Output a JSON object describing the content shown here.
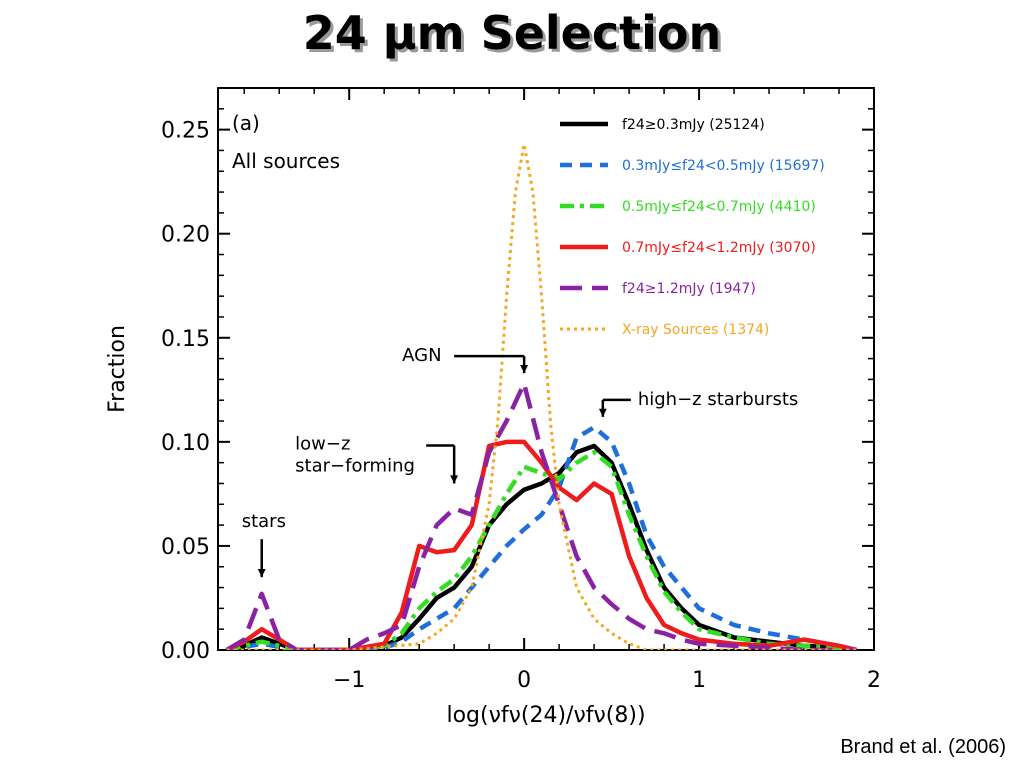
{
  "slide": {
    "title": "24 μm Selection",
    "citation": "Brand et al. (2006)"
  },
  "chart_data": {
    "type": "line",
    "title": "",
    "xlabel": "log(νfν(24)/νfν(8))",
    "ylabel": "Fraction",
    "panel_label": "(a)",
    "panel_subtitle": "All sources",
    "xlim": [
      -1.75,
      2.0
    ],
    "ylim": [
      0.0,
      0.27
    ],
    "xticks": [
      -1,
      0,
      1,
      2
    ],
    "xtick_labels": [
      "−1",
      "0",
      "1",
      "2"
    ],
    "yticks": [
      0.0,
      0.05,
      0.1,
      0.15,
      0.2,
      0.25
    ],
    "ytick_labels": [
      "0.00",
      "0.05",
      "0.10",
      "0.15",
      "0.20",
      "0.25"
    ],
    "grid": false,
    "legend_position": "top-right",
    "series": [
      {
        "name": "f24≥0.3mJy (25124)",
        "color": "#000000",
        "dash": "solid",
        "x": [
          -1.7,
          -1.6,
          -1.5,
          -1.4,
          -1.3,
          -1.2,
          -1.0,
          -0.8,
          -0.7,
          -0.6,
          -0.5,
          -0.4,
          -0.3,
          -0.2,
          -0.1,
          0.0,
          0.1,
          0.2,
          0.3,
          0.4,
          0.5,
          0.6,
          0.7,
          0.8,
          0.9,
          1.0,
          1.2,
          1.4,
          1.6,
          1.8,
          1.9
        ],
        "y": [
          0.0,
          0.002,
          0.006,
          0.003,
          0.0,
          0.0,
          0.0,
          0.002,
          0.006,
          0.015,
          0.025,
          0.03,
          0.04,
          0.06,
          0.07,
          0.077,
          0.08,
          0.085,
          0.095,
          0.098,
          0.09,
          0.07,
          0.048,
          0.03,
          0.02,
          0.012,
          0.006,
          0.004,
          0.002,
          0.001,
          0.0
        ]
      },
      {
        "name": "0.3mJy≤f24<0.5mJy (15697)",
        "color": "#1e6fd9",
        "dash": "dash",
        "x": [
          -1.7,
          -1.5,
          -1.3,
          -1.0,
          -0.8,
          -0.7,
          -0.6,
          -0.5,
          -0.4,
          -0.3,
          -0.2,
          -0.1,
          0.0,
          0.1,
          0.2,
          0.3,
          0.4,
          0.5,
          0.6,
          0.7,
          0.8,
          0.9,
          1.0,
          1.2,
          1.4,
          1.6,
          1.8,
          1.9
        ],
        "y": [
          0.0,
          0.003,
          0.0,
          0.0,
          0.001,
          0.004,
          0.01,
          0.015,
          0.02,
          0.03,
          0.04,
          0.05,
          0.058,
          0.065,
          0.078,
          0.102,
          0.107,
          0.1,
          0.08,
          0.055,
          0.04,
          0.03,
          0.02,
          0.012,
          0.008,
          0.005,
          0.002,
          0.0
        ]
      },
      {
        "name": "0.5mJy≤f24<0.7mJy (4410)",
        "color": "#33dd22",
        "dash": "dashdot",
        "x": [
          -1.7,
          -1.5,
          -1.3,
          -1.0,
          -0.8,
          -0.7,
          -0.6,
          -0.5,
          -0.4,
          -0.3,
          -0.2,
          -0.1,
          0.0,
          0.1,
          0.2,
          0.3,
          0.4,
          0.5,
          0.6,
          0.7,
          0.8,
          0.9,
          1.0,
          1.2,
          1.4,
          1.6,
          1.8,
          1.9
        ],
        "y": [
          0.0,
          0.004,
          0.0,
          0.0,
          0.002,
          0.008,
          0.02,
          0.028,
          0.034,
          0.045,
          0.06,
          0.075,
          0.088,
          0.085,
          0.082,
          0.09,
          0.095,
          0.088,
          0.065,
          0.045,
          0.028,
          0.018,
          0.01,
          0.006,
          0.003,
          0.002,
          0.001,
          0.0
        ]
      },
      {
        "name": "0.7mJy≤f24<1.2mJy (3070)",
        "color": "#ee1c1c",
        "dash": "solid",
        "x": [
          -1.7,
          -1.6,
          -1.5,
          -1.4,
          -1.3,
          -1.0,
          -0.8,
          -0.7,
          -0.6,
          -0.5,
          -0.4,
          -0.3,
          -0.2,
          -0.1,
          0.0,
          0.1,
          0.2,
          0.3,
          0.4,
          0.5,
          0.6,
          0.7,
          0.8,
          0.9,
          1.0,
          1.2,
          1.4,
          1.6,
          1.8,
          1.9
        ],
        "y": [
          0.0,
          0.004,
          0.01,
          0.005,
          0.0,
          0.0,
          0.003,
          0.018,
          0.05,
          0.047,
          0.048,
          0.06,
          0.098,
          0.1,
          0.1,
          0.09,
          0.078,
          0.072,
          0.08,
          0.075,
          0.045,
          0.025,
          0.012,
          0.008,
          0.005,
          0.003,
          0.002,
          0.005,
          0.002,
          0.0
        ]
      },
      {
        "name": "f24≥1.2mJy (1947)",
        "color": "#8b22a3",
        "dash": "longdash",
        "x": [
          -1.7,
          -1.6,
          -1.5,
          -1.4,
          -1.3,
          -1.0,
          -0.9,
          -0.8,
          -0.7,
          -0.6,
          -0.5,
          -0.4,
          -0.3,
          -0.2,
          -0.1,
          0.0,
          0.1,
          0.2,
          0.3,
          0.4,
          0.5,
          0.6,
          0.7,
          0.8,
          0.9,
          1.0,
          1.2,
          1.4,
          1.6,
          1.8,
          1.9
        ],
        "y": [
          0.0,
          0.005,
          0.027,
          0.005,
          0.0,
          0.0,
          0.005,
          0.008,
          0.012,
          0.04,
          0.06,
          0.068,
          0.065,
          0.095,
          0.11,
          0.128,
          0.095,
          0.07,
          0.045,
          0.03,
          0.022,
          0.015,
          0.01,
          0.008,
          0.005,
          0.003,
          0.002,
          0.001,
          0.0,
          0.0,
          0.0
        ]
      },
      {
        "name": "X-ray Sources (1374)",
        "color": "#f5a623",
        "dash": "dot",
        "x": [
          -1.7,
          -1.0,
          -0.6,
          -0.5,
          -0.4,
          -0.3,
          -0.2,
          -0.15,
          -0.1,
          -0.05,
          0.0,
          0.05,
          0.1,
          0.15,
          0.2,
          0.3,
          0.4,
          0.5,
          0.6,
          0.7,
          1.0,
          1.9
        ],
        "y": [
          0.0,
          0.0,
          0.003,
          0.008,
          0.015,
          0.03,
          0.07,
          0.11,
          0.17,
          0.22,
          0.243,
          0.22,
          0.17,
          0.11,
          0.07,
          0.03,
          0.015,
          0.008,
          0.003,
          0.0,
          0.0,
          0.0
        ]
      }
    ],
    "annotations": [
      {
        "text": "AGN",
        "x": 0.0,
        "y": 0.133
      },
      {
        "text": "high−z starbursts",
        "x": 0.45,
        "y": 0.112
      },
      {
        "text": "low−z\nstar−forming",
        "x": -0.4,
        "y": 0.08
      },
      {
        "text": "stars",
        "x": -1.5,
        "y": 0.035
      }
    ]
  }
}
